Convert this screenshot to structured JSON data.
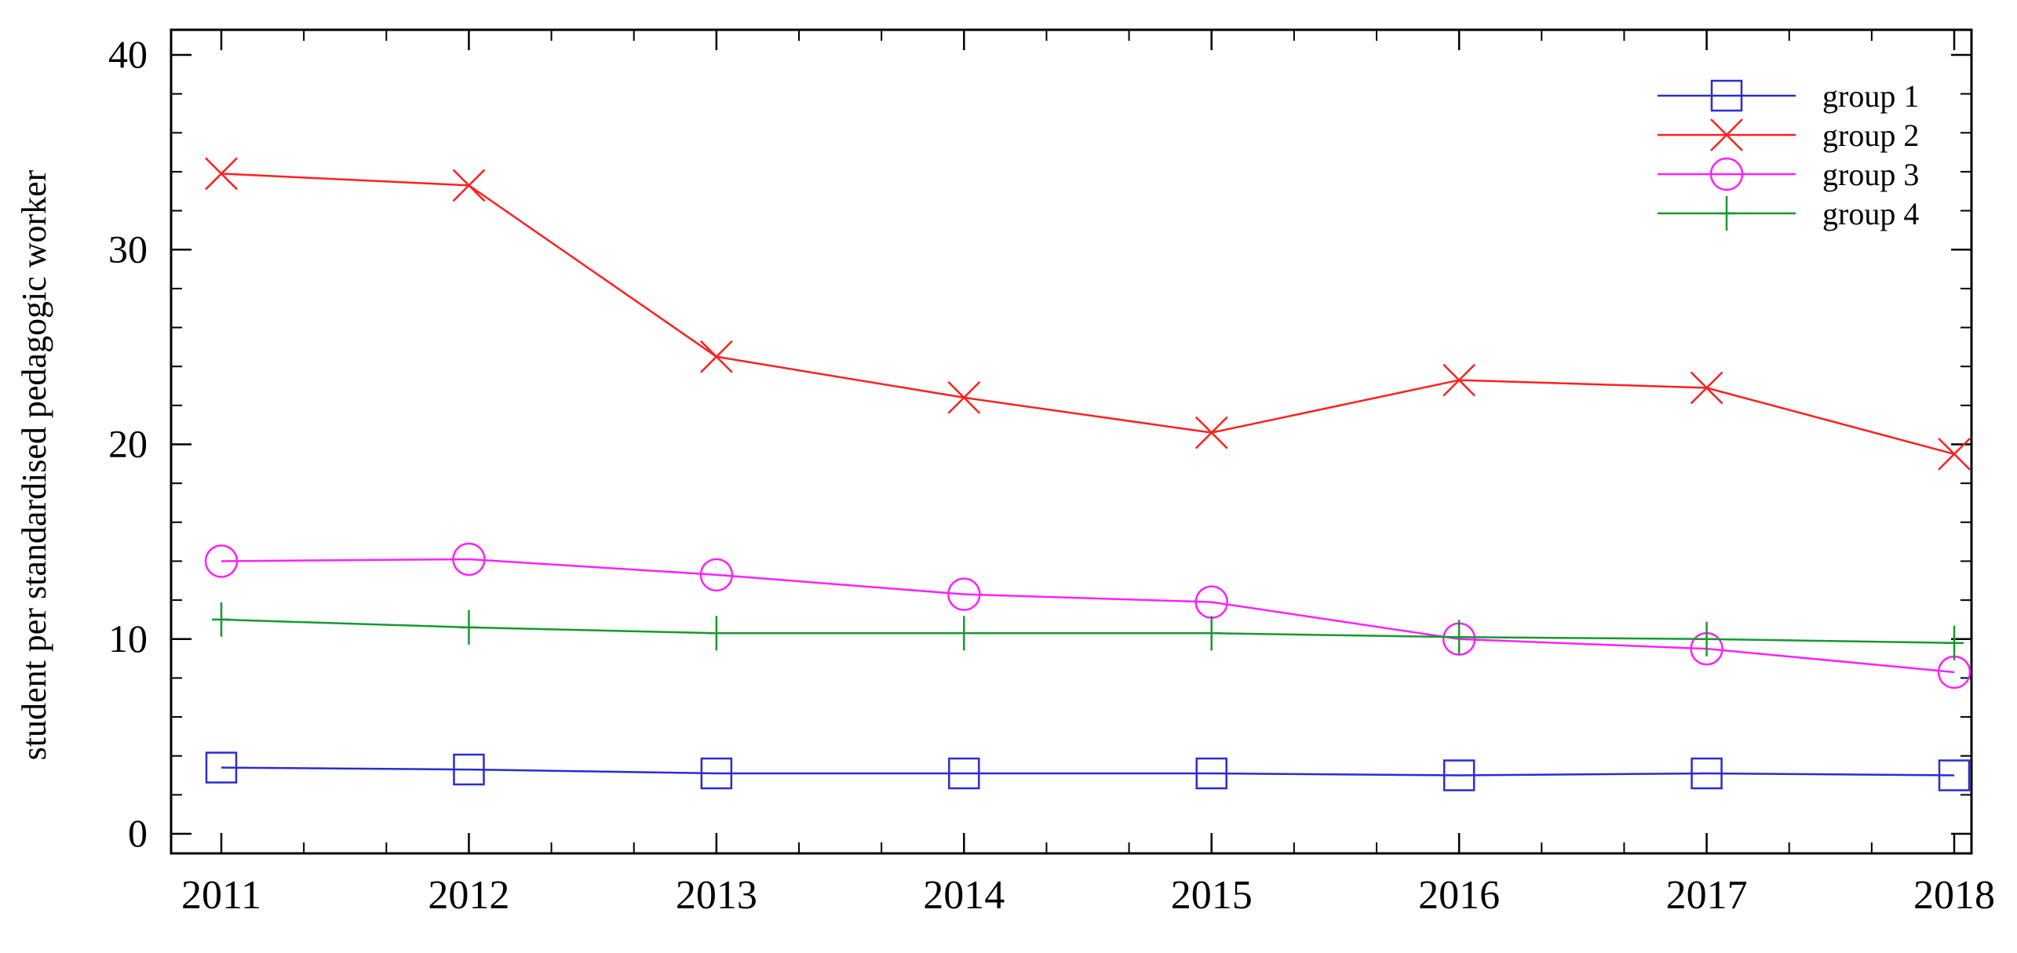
{
  "chart_data": {
    "type": "line",
    "title": "",
    "xlabel": "",
    "ylabel": "student per standardised pedagogic worker",
    "x": [
      2011,
      2012,
      2013,
      2014,
      2015,
      2016,
      2017,
      2018
    ],
    "x_tick_labels": [
      "2011",
      "2012",
      "2013",
      "2014",
      "2015",
      "2016",
      "2017",
      "2018"
    ],
    "xlim": [
      2011,
      2018
    ],
    "ylim": [
      -1,
      41
    ],
    "y_ticks": [
      0,
      10,
      20,
      30,
      40
    ],
    "y_tick_labels": [
      "0",
      "10",
      "20",
      "30",
      "40"
    ],
    "y_minor_step": 2,
    "grid": false,
    "legend_position": "top-right",
    "series": [
      {
        "name": "group 1",
        "color": "#2b2bd6",
        "marker": "square",
        "values": [
          3.4,
          3.3,
          3.1,
          3.1,
          3.1,
          3.0,
          3.1,
          3.0
        ]
      },
      {
        "name": "group 2",
        "color": "#ff2020",
        "marker": "x",
        "values": [
          33.9,
          33.3,
          24.5,
          22.4,
          20.6,
          23.3,
          22.9,
          19.5
        ]
      },
      {
        "name": "group 3",
        "color": "#ff20ff",
        "marker": "circle",
        "values": [
          14.0,
          14.1,
          13.3,
          12.3,
          11.9,
          10.0,
          9.5,
          8.3
        ]
      },
      {
        "name": "group 4",
        "color": "#159a2e",
        "marker": "plus",
        "values": [
          11.0,
          10.6,
          10.3,
          10.3,
          10.3,
          10.1,
          10.0,
          9.8
        ]
      }
    ]
  }
}
